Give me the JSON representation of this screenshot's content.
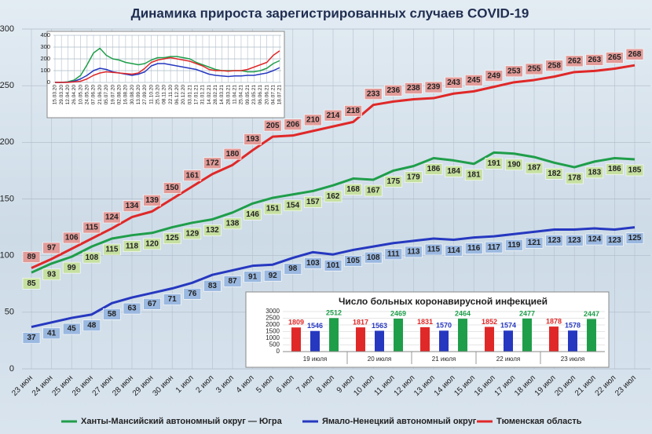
{
  "chart_data": [
    {
      "type": "line",
      "title": "Динамика прироста зарегистрированных случаев COVID-19",
      "categories": [
        "23 июн",
        "24 июн",
        "25 июн",
        "26 июн",
        "27 июн",
        "28 июн",
        "29 июн",
        "30 июн",
        "1 июл",
        "2 июл",
        "3 июл",
        "4 июл",
        "5 июл",
        "6 июл",
        "7 июл",
        "8 июл",
        "9 июл",
        "10 июл",
        "11 июл",
        "12 июл",
        "13 июл",
        "14 июл",
        "15 июл",
        "16 июл",
        "17 июл",
        "18 июл",
        "19 июл",
        "20 июл",
        "21 июл",
        "22 июл",
        "23 июл"
      ],
      "series": [
        {
          "name": "Ханты-Мансийский автономный округ — Югра",
          "color": "#1f9e4a",
          "values": [
            85,
            93,
            99,
            108,
            115,
            118,
            120,
            125,
            129,
            132,
            138,
            146,
            151,
            154,
            157,
            162,
            168,
            167,
            175,
            179,
            186,
            184,
            181,
            191,
            190,
            187,
            182,
            178,
            183,
            186,
            185
          ]
        },
        {
          "name": "Ямало-Ненецкий автономный округ",
          "color": "#2638c0",
          "values": [
            37,
            41,
            45,
            48,
            58,
            63,
            67,
            71,
            76,
            83,
            87,
            91,
            92,
            98,
            103,
            101,
            105,
            108,
            111,
            113,
            115,
            114,
            116,
            117,
            119,
            121,
            123,
            123,
            124,
            123,
            125
          ]
        },
        {
          "name": "Тюменская область",
          "color": "#e02828",
          "values": [
            89,
            97,
            106,
            115,
            124,
            134,
            139,
            150,
            161,
            172,
            180,
            193,
            205,
            206,
            210,
            214,
            218,
            233,
            236,
            238,
            239,
            243,
            245,
            249,
            253,
            255,
            258,
            262,
            263,
            265,
            268
          ]
        }
      ],
      "ylim": [
        0,
        300
      ],
      "yticks": [
        0,
        50,
        100,
        150,
        200,
        250,
        300
      ],
      "grid": true,
      "legend": "bottom"
    },
    {
      "type": "line",
      "categories": [
        "15.03.20",
        "29.03.20",
        "12.04.20",
        "26.04.20",
        "10.05.20",
        "24.05.20",
        "07.06.20",
        "21.06.20",
        "05.07.20",
        "19.07.20",
        "02.08.20",
        "16.08.20",
        "30.08.20",
        "13.09.20",
        "27.09.20",
        "11.10.20",
        "25.10.20",
        "08.11.20",
        "22.11.20",
        "06.12.20",
        "20.12.20",
        "03.01.21",
        "17.01.21",
        "31.01.21",
        "14.02.21",
        "28.02.21",
        "14.03.21",
        "28.03.21",
        "11.04.21",
        "25.04.21",
        "09.05.21",
        "23.05.21",
        "06.06.21",
        "20.06.21",
        "04.07.21",
        "18.07.21"
      ],
      "series": [
        {
          "color": "#1f9e4a",
          "values": [
            0,
            0,
            5,
            20,
            60,
            150,
            250,
            290,
            230,
            200,
            190,
            170,
            160,
            150,
            160,
            190,
            210,
            210,
            220,
            220,
            210,
            200,
            170,
            150,
            130,
            110,
            100,
            100,
            100,
            100,
            90,
            90,
            100,
            120,
            160,
            185
          ]
        },
        {
          "color": "#2638c0",
          "values": [
            0,
            0,
            2,
            10,
            30,
            60,
            100,
            120,
            110,
            90,
            80,
            70,
            60,
            70,
            90,
            140,
            160,
            160,
            150,
            140,
            130,
            120,
            110,
            90,
            70,
            60,
            55,
            50,
            55,
            55,
            60,
            60,
            70,
            80,
            100,
            125
          ]
        },
        {
          "color": "#e02828",
          "values": [
            0,
            0,
            0,
            5,
            10,
            30,
            60,
            80,
            90,
            85,
            80,
            75,
            70,
            80,
            120,
            170,
            190,
            200,
            210,
            200,
            190,
            180,
            160,
            140,
            110,
            100,
            100,
            95,
            100,
            100,
            110,
            130,
            150,
            170,
            230,
            268
          ]
        }
      ],
      "ylim": [
        0,
        400
      ],
      "yticks": [
        0,
        100,
        200,
        300,
        400
      ],
      "grid": true
    },
    {
      "type": "bar",
      "title": "Число больных коронавирусной инфекцией",
      "categories": [
        "19 июля",
        "20 июля",
        "21 июля",
        "22 июля",
        "23 июля"
      ],
      "series": [
        {
          "color": "#e02828",
          "values": [
            1809,
            1817,
            1831,
            1852,
            1878
          ]
        },
        {
          "color": "#2638c0",
          "values": [
            1546,
            1563,
            1570,
            1574,
            1578
          ]
        },
        {
          "color": "#1f9e4a",
          "values": [
            2512,
            2469,
            2464,
            2477,
            2447
          ]
        }
      ],
      "ylim": [
        0,
        3000
      ],
      "yticks": [
        0,
        500,
        1000,
        1500,
        2000,
        2500,
        3000
      ],
      "grid": true
    }
  ]
}
